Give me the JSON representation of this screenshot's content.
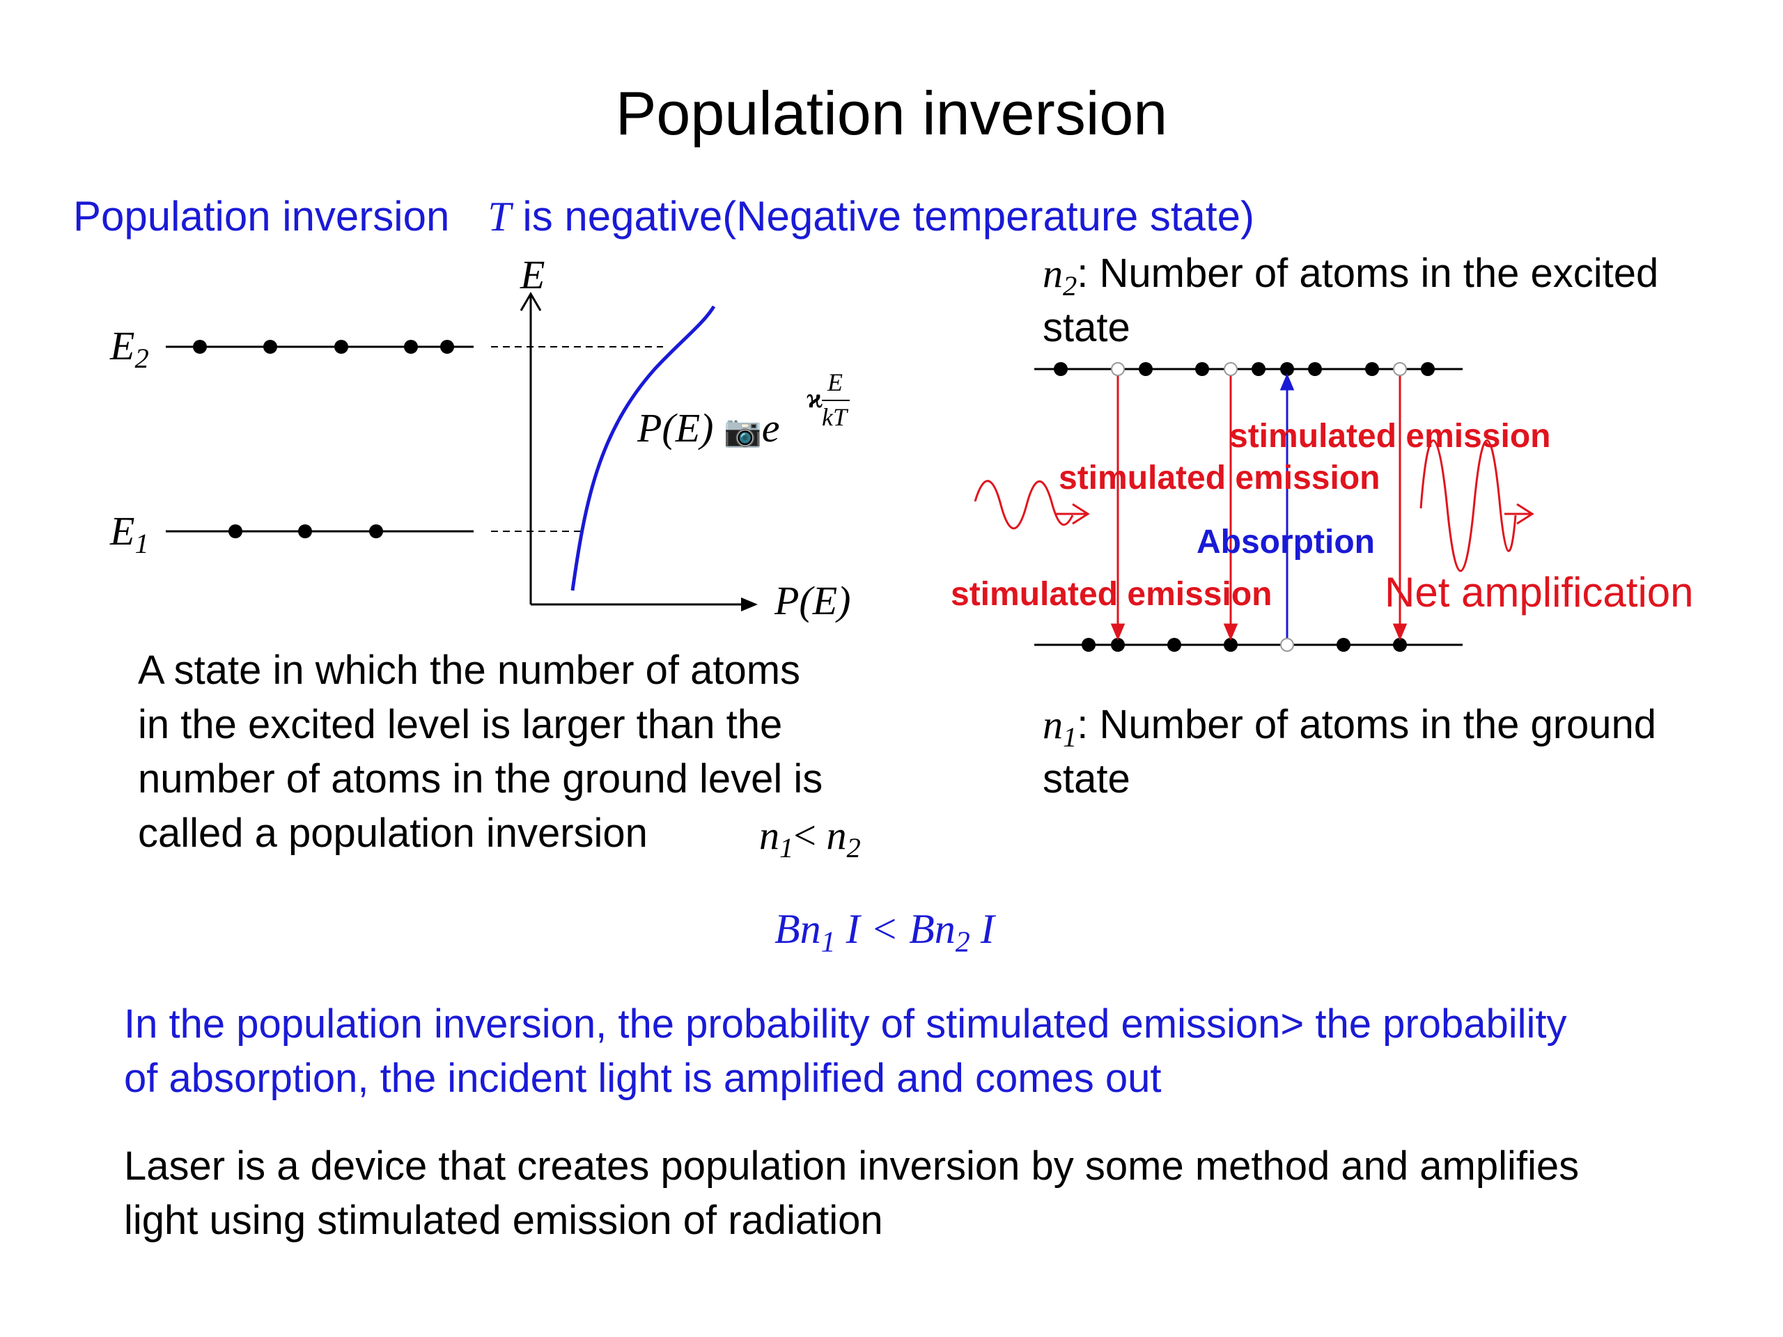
{
  "slide": {
    "title": "Population inversion",
    "subtitle": {
      "lead": "Population inversion",
      "T": "T",
      "rest": " is negative(Negative temperature state)"
    }
  },
  "left_diagram": {
    "axis_e": "E",
    "axis_pe": "P(E)",
    "level_e2": "E",
    "level_e2_sub": "2",
    "level_e1": "E",
    "level_e1_sub": "1",
    "formula_lhs": "P(E)",
    "formula_glyphs": "📷",
    "formula_e": "e",
    "formula_exp_sign": "ϰ",
    "formula_exp_num": "E",
    "formula_exp_den": "kT"
  },
  "right_diagram": {
    "n2_var": "n",
    "n2_sub": "2",
    "n2_text": ": Number of atoms in the excited",
    "n2_text2": "state",
    "n1_var": "n",
    "n1_sub": "1",
    "n1_text": ": Number of atoms in the ground",
    "n1_text2": "state",
    "label_stim_1": "stimulated emission",
    "label_stim_2": "stimulated emission",
    "label_stim_3": "stimulated emission",
    "label_absorption": "Absorption",
    "label_net": "Net amplification"
  },
  "definition": {
    "line1": "A state in which the number of atoms",
    "line2": "in the excited level is larger than the",
    "line3": "number of atoms in the ground level is",
    "line4": "called a population inversion",
    "rel_n": "n",
    "rel_sub1": "1",
    "rel_lt": "< ",
    "rel_n2": "n",
    "rel_sub2": "2"
  },
  "equation": {
    "b1": "Bn",
    "sub1": "1",
    "mid": " I < Bn",
    "sub2": "2",
    "end": " I"
  },
  "conclusion": {
    "line1": "In the population inversion, the probability of stimulated emission> the probability",
    "line2": "of absorption, the incident light is amplified and comes out"
  },
  "laser": {
    "line1": "Laser is a device that creates population inversion by some method and amplifies",
    "line2": "light using stimulated emission of radiation"
  },
  "colors": {
    "blue": "#1a1ad6",
    "red": "#e0141e",
    "black": "#000000"
  }
}
